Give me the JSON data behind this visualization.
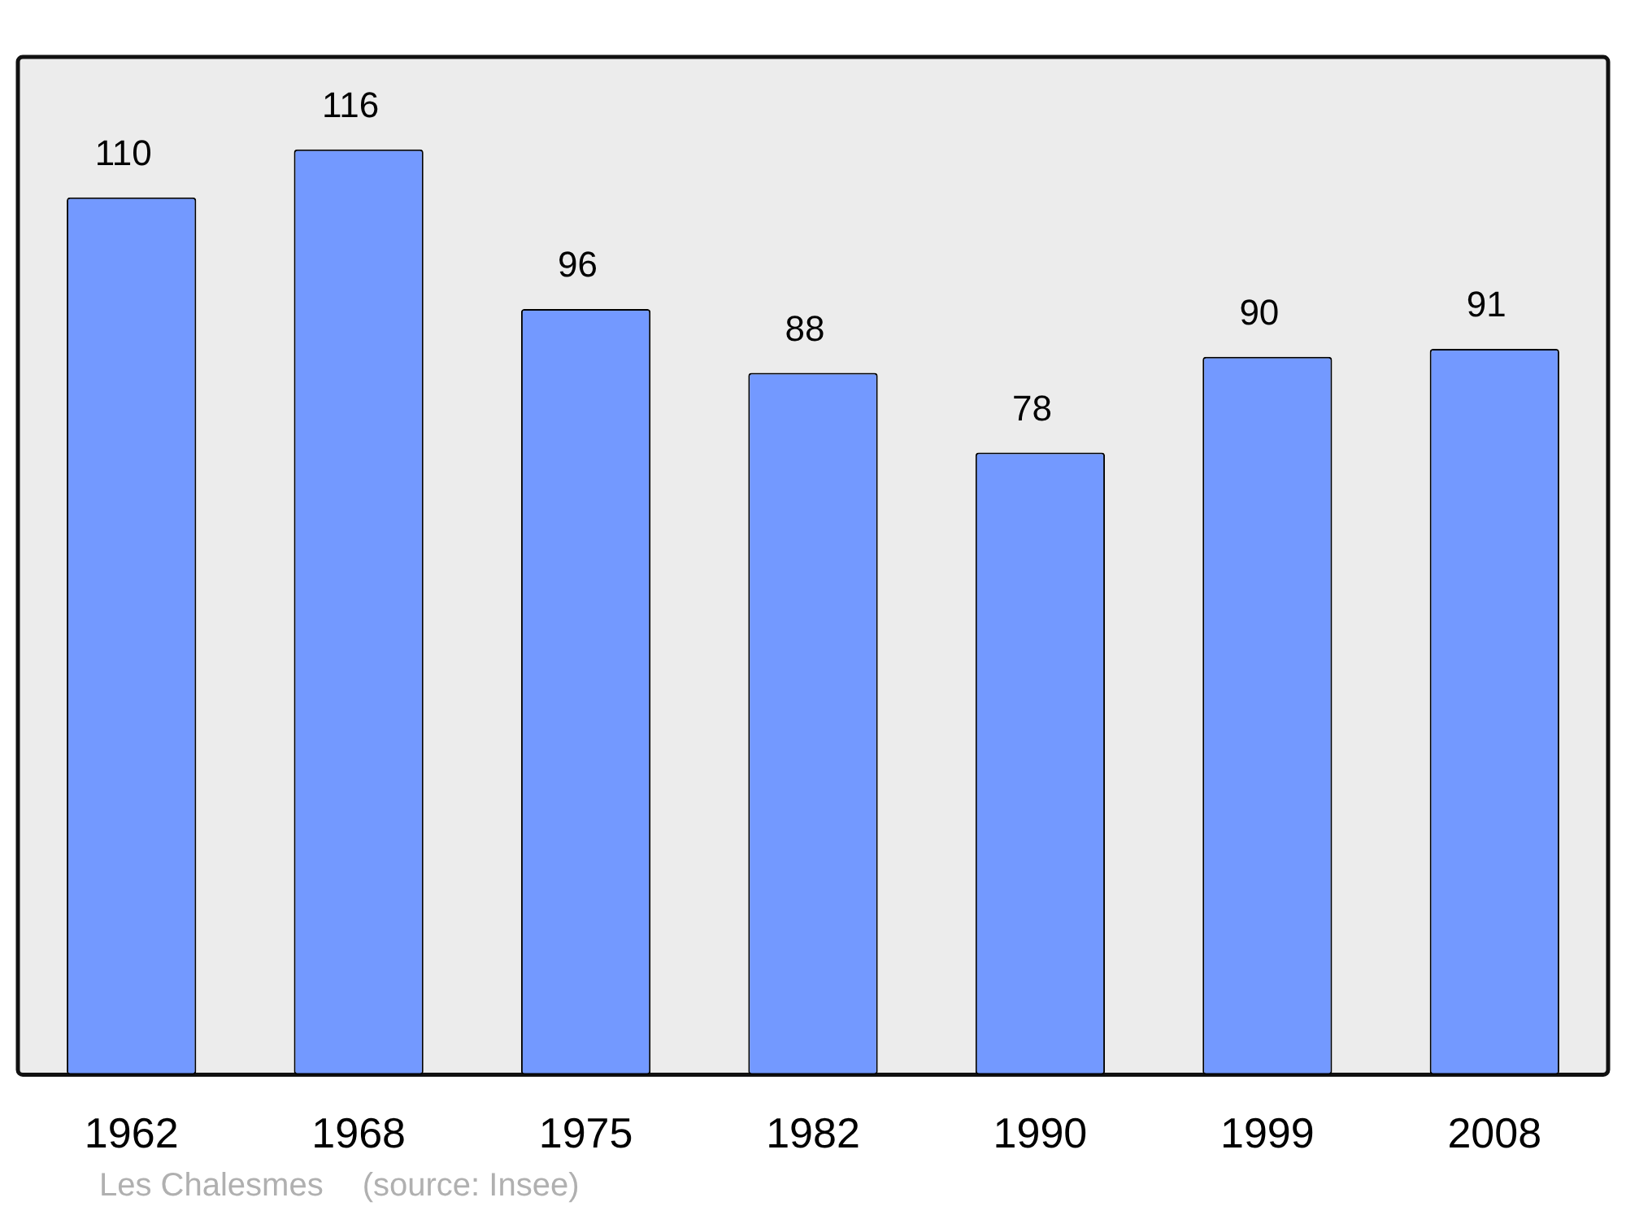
{
  "chart_data": {
    "type": "bar",
    "categories": [
      "1962",
      "1968",
      "1975",
      "1982",
      "1990",
      "1999",
      "2008"
    ],
    "values": [
      110,
      116,
      96,
      88,
      78,
      90,
      91
    ],
    "color": "#7399ff",
    "data_labels": true,
    "grid": false,
    "legend": false,
    "annotations": [
      "Les Chalesmes",
      "(source: Insee)"
    ]
  }
}
